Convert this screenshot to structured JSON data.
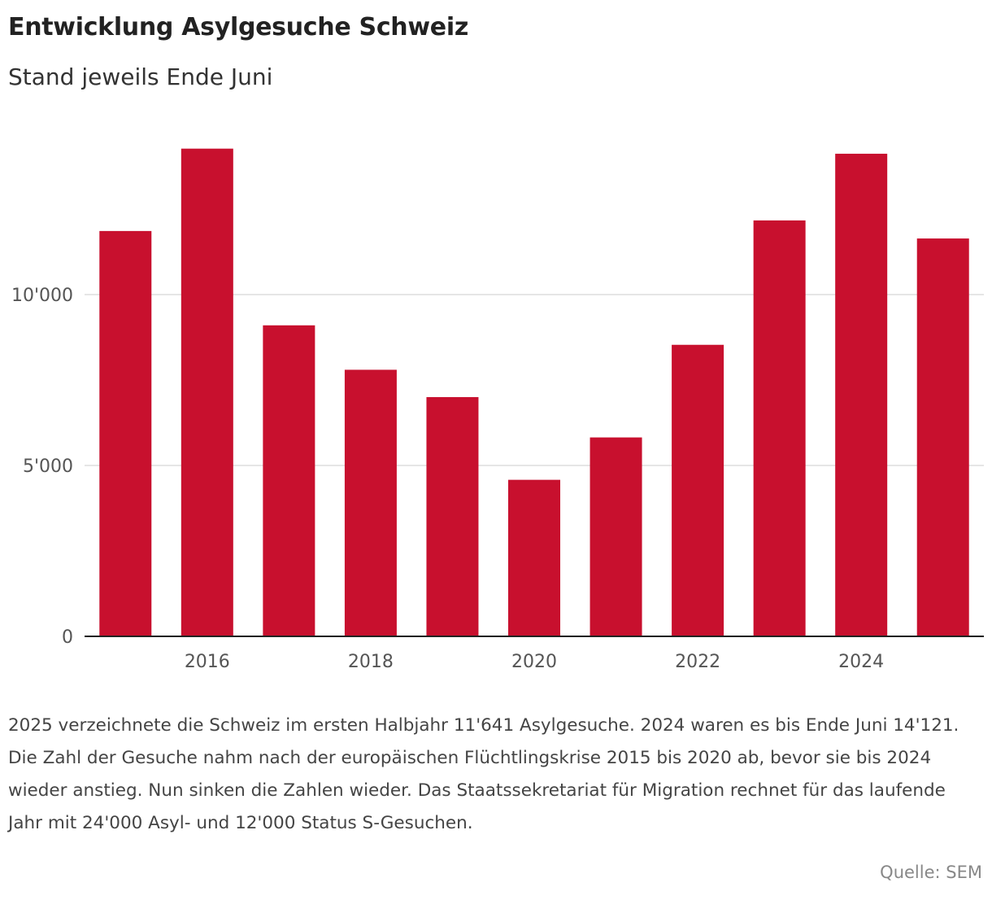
{
  "title": "Entwicklung Asylgesuche Schweiz",
  "subtitle": "Stand jeweils Ende Juni",
  "note": "2025 verzeichnete die Schweiz im ersten Halbjahr 11'641 Asylgesuche. 2024 waren es bis Ende Juni 14'121. Die Zahl der Gesuche nahm nach der europäischen Flüchtlingskrise 2015 bis 2020 ab, bevor sie bis 2024 wieder anstieg. Nun sinken die Zahlen wieder. Das Staatssekretariat für Migration rechnet für das laufende Jahr mit 24'000 Asyl- und 12'000 Status S-Gesuchen.",
  "source": "Quelle: SEM",
  "colors": {
    "bar": "#c8102e",
    "grid": "#dddddd",
    "axis": "#222222"
  },
  "chart_data": {
    "type": "bar",
    "title": "Entwicklung Asylgesuche Schweiz",
    "subtitle": "Stand jeweils Ende Juni",
    "categories": [
      2015,
      2016,
      2017,
      2018,
      2019,
      2020,
      2021,
      2022,
      2023,
      2024,
      2025
    ],
    "values": [
      11860,
      14270,
      9100,
      7800,
      7000,
      4580,
      5820,
      8530,
      12170,
      14121,
      11641
    ],
    "ylim": [
      0,
      15000
    ],
    "yticks": [
      0,
      5000,
      10000
    ],
    "ytick_labels": [
      "0",
      "5'000",
      "10'000"
    ],
    "xticks": [
      2016,
      2018,
      2020,
      2022,
      2024
    ],
    "xtick_labels": [
      "2016",
      "2018",
      "2020",
      "2022",
      "2024"
    ],
    "xlabel": "",
    "ylabel": "",
    "grid": true
  }
}
